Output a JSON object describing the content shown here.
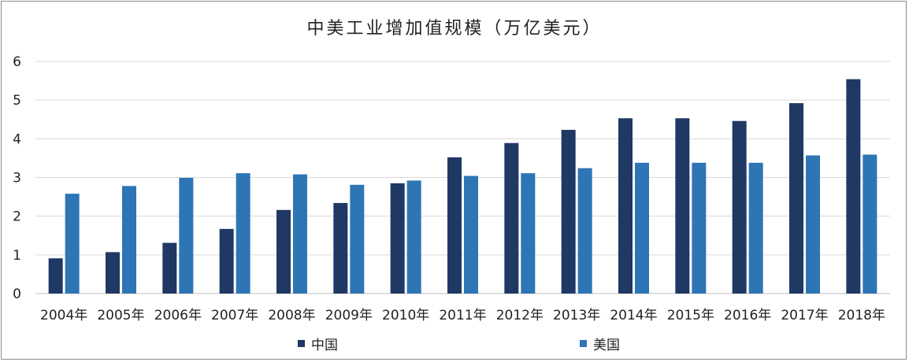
{
  "chart_data": {
    "type": "bar",
    "title": "中美工业增加值规模（万亿美元）",
    "categories": [
      "2004年",
      "2005年",
      "2006年",
      "2007年",
      "2008年",
      "2009年",
      "2010年",
      "2011年",
      "2012年",
      "2013年",
      "2014年",
      "2015年",
      "2016年",
      "2017年",
      "2018年"
    ],
    "series": [
      {
        "name": "中国",
        "color": "#1f3864",
        "values": [
          0.91,
          1.07,
          1.31,
          1.67,
          2.16,
          2.34,
          2.85,
          3.52,
          3.89,
          4.23,
          4.53,
          4.53,
          4.46,
          4.92,
          5.54
        ]
      },
      {
        "name": "美国",
        "color": "#2e75b6",
        "values": [
          2.58,
          2.78,
          2.99,
          3.11,
          3.08,
          2.81,
          2.92,
          3.04,
          3.11,
          3.24,
          3.38,
          3.38,
          3.38,
          3.57,
          3.59
        ]
      }
    ],
    "ylim": [
      0,
      6
    ],
    "yticks": [
      0,
      1,
      2,
      3,
      4,
      5,
      6
    ],
    "grid": true,
    "legend": "bottom"
  }
}
